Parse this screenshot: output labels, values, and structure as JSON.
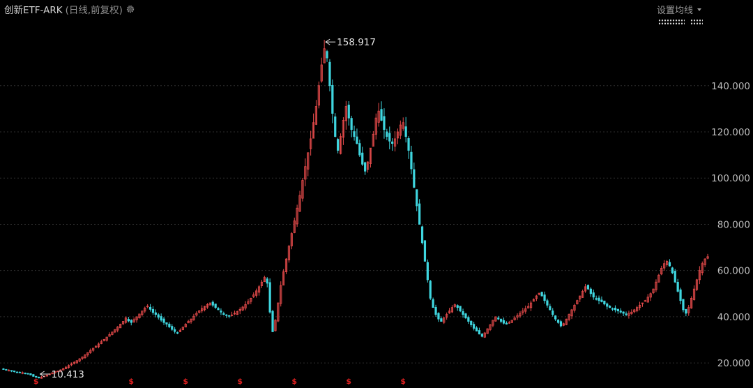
{
  "header": {
    "title": "创新ETF-ARK",
    "subtitle": "(日线,前复权)",
    "settings_icon": "gear-icon",
    "ma_setting_label": "设置均线",
    "ma_setting_icon": "caret-down-icon"
  },
  "colors": {
    "background": "#000000",
    "up_candle": "#e84b4b",
    "down_candle": "#3fd6df",
    "grid": "#2e2e2e",
    "dividend_marker": "#e02020"
  },
  "chart_data": {
    "type": "candlestick",
    "title": "创新ETF-ARK",
    "subtitle": "(日线,前复权)",
    "y_axis_side": "right",
    "ylim": [
      14,
      165
    ],
    "yticks": [
      20,
      40,
      60,
      80,
      100,
      120,
      140
    ],
    "ytick_labels": [
      "20.000",
      "40.000",
      "60.000",
      "80.000",
      "100.000",
      "120.000",
      "140.000"
    ],
    "grid": "horizontal-dashed",
    "series": [
      {
        "name": "close",
        "values": [
          17.3,
          17.0,
          16.8,
          16.5,
          16.2,
          16.0,
          15.9,
          15.8,
          15.6,
          15.3,
          14.8,
          14.2,
          13.8,
          13.5,
          13.9,
          14.3,
          14.8,
          15.3,
          15.8,
          16.2,
          16.5,
          17.0,
          17.6,
          18.2,
          18.9,
          19.6,
          20.3,
          21.0,
          21.8,
          22.6,
          23.5,
          24.5,
          25.5,
          26.4,
          27.3,
          28.2,
          29.2,
          30.2,
          31.2,
          32.3,
          33.4,
          34.5,
          35.6,
          36.8,
          38.0,
          39.5,
          38.2,
          37.5,
          38.8,
          40.0,
          41.2,
          42.5,
          43.8,
          44.6,
          43.2,
          41.8,
          41.0,
          39.8,
          38.5,
          37.5,
          36.8,
          35.6,
          34.5,
          33.6,
          33.0,
          34.2,
          35.5,
          36.8,
          38.0,
          39.0,
          40.2,
          41.5,
          42.6,
          43.6,
          44.5,
          45.3,
          46.0,
          45.0,
          44.0,
          43.0,
          42.0,
          41.0,
          40.5,
          40.2,
          40.8,
          41.5,
          42.3,
          43.2,
          44.2,
          45.3,
          46.5,
          48.0,
          49.5,
          51.2,
          53.0,
          55.0,
          57.0,
          54.5,
          42.0,
          33.5,
          38.5,
          46.0,
          53.5,
          59.5,
          65.0,
          70.5,
          76.0,
          81.5,
          87.0,
          92.5,
          99.0,
          105.0,
          111.0,
          117.0,
          124.0,
          131.0,
          140.0,
          149.0,
          156.0,
          152.0,
          140.0,
          128.0,
          118.0,
          112.0,
          118.0,
          125.0,
          131.0,
          126.0,
          121.0,
          118.0,
          115.0,
          110.0,
          106.0,
          103.0,
          107.0,
          113.0,
          119.0,
          126.0,
          129.0,
          125.0,
          121.0,
          118.0,
          116.0,
          115.0,
          117.0,
          120.0,
          123.0,
          124.0,
          118.0,
          112.0,
          104.0,
          96.0,
          88.0,
          80.0,
          72.0,
          64.0,
          56.0,
          48.0,
          44.0,
          41.0,
          39.0,
          38.0,
          39.5,
          41.0,
          42.5,
          44.0,
          45.2,
          44.0,
          42.5,
          41.0,
          39.5,
          38.0,
          36.5,
          35.0,
          33.8,
          32.5,
          31.5,
          33.0,
          34.8,
          36.5,
          38.5,
          40.0,
          39.0,
          38.0,
          37.2,
          36.8,
          37.5,
          38.5,
          39.5,
          40.5,
          41.5,
          42.5,
          43.5,
          44.5,
          46.0,
          47.5,
          49.0,
          50.2,
          49.0,
          47.0,
          45.0,
          43.0,
          41.0,
          39.0,
          37.5,
          36.0,
          37.0,
          39.0,
          41.0,
          43.0,
          45.0,
          47.0,
          49.0,
          51.0,
          53.0,
          52.0,
          50.0,
          48.5,
          47.5,
          47.0,
          46.5,
          45.5,
          44.5,
          44.0,
          43.5,
          43.0,
          42.5,
          42.0,
          41.5,
          41.0,
          41.5,
          42.0,
          43.0,
          44.0,
          45.0,
          46.0,
          47.0,
          48.5,
          50.0,
          52.0,
          55.0,
          58.0,
          61.0,
          63.0,
          64.0,
          62.0,
          59.0,
          55.0,
          51.0,
          47.0,
          43.0,
          41.5,
          44.0,
          48.0,
          52.0,
          56.0,
          60.0,
          63.0,
          65.0,
          66.0
        ]
      }
    ],
    "annotations": [
      {
        "label": "158.917",
        "value": 158.917,
        "kind": "max"
      },
      {
        "label": "10.413",
        "value": 10.413,
        "kind": "min"
      }
    ],
    "dividend_markers": {
      "label": "$",
      "count": 7,
      "indices": [
        12,
        47,
        67,
        87,
        107,
        127,
        147
      ]
    }
  }
}
